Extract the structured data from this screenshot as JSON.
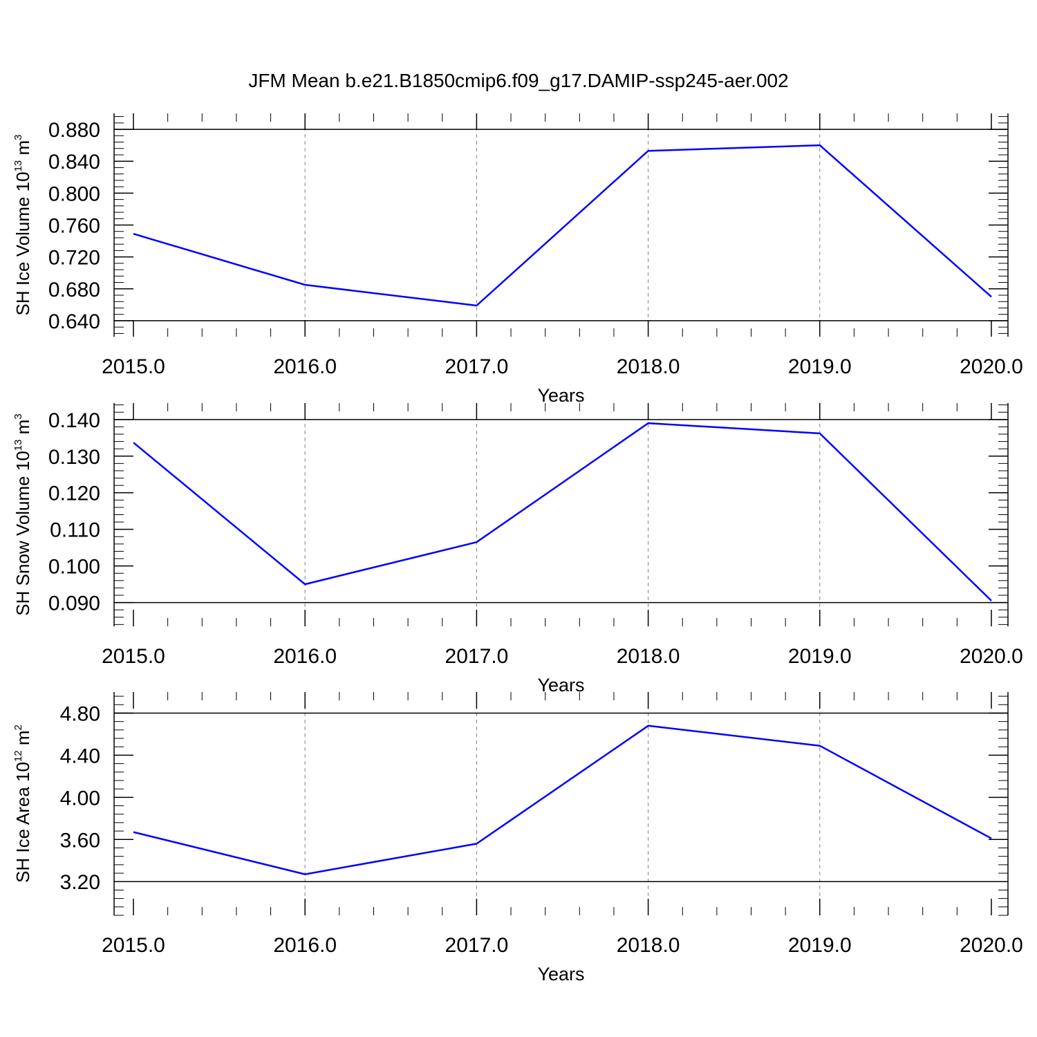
{
  "figure": {
    "title": "JFM Mean b.e21.B1850cmip6.f09_g17.DAMIP-ssp245-aer.002"
  },
  "colors": {
    "line": "#0000ff",
    "axis": "#000000",
    "grid": "#808080",
    "background": "#ffffff"
  },
  "chart_data": [
    {
      "type": "line",
      "xlabel": "Years",
      "ylabel": {
        "text": "SH Ice Volume 10",
        "exp1": "13",
        "unit": " m",
        "exp2": "3"
      },
      "xlim": [
        2015,
        2020
      ],
      "ylim": [
        0.62,
        0.9
      ],
      "xticks": [
        2015,
        2016,
        2017,
        2018,
        2019,
        2020
      ],
      "xtick_labels": [
        "2015.0",
        "2016.0",
        "2017.0",
        "2018.0",
        "2019.0",
        "2020.0"
      ],
      "yticks": [
        0.64,
        0.68,
        0.72,
        0.76,
        0.8,
        0.84,
        0.88
      ],
      "ytick_labels": [
        "0.640",
        "0.680",
        "0.720",
        "0.760",
        "0.800",
        "0.840",
        "0.880"
      ],
      "y_minor_step": 0.008,
      "x_minor_step": 0.2,
      "grid": "vertical-dashed",
      "series": [
        {
          "x": [
            2015,
            2016,
            2017,
            2018,
            2019,
            2020
          ],
          "values": [
            0.749,
            0.685,
            0.659,
            0.853,
            0.86,
            0.67
          ]
        }
      ]
    },
    {
      "type": "line",
      "xlabel": "Years",
      "ylabel": {
        "text": "SH Snow Volume 10",
        "exp1": "13",
        "unit": " m",
        "exp2": "3"
      },
      "xlim": [
        2015,
        2020
      ],
      "ylim": [
        0.0835,
        0.1445
      ],
      "xticks": [
        2015,
        2016,
        2017,
        2018,
        2019,
        2020
      ],
      "xtick_labels": [
        "2015.0",
        "2016.0",
        "2017.0",
        "2018.0",
        "2019.0",
        "2020.0"
      ],
      "yticks": [
        0.09,
        0.1,
        0.11,
        0.12,
        0.13,
        0.14
      ],
      "ytick_labels": [
        "0.090",
        "0.100",
        "0.110",
        "0.120",
        "0.130",
        "0.140"
      ],
      "y_minor_step": 0.002,
      "x_minor_step": 0.2,
      "grid": "vertical-dashed",
      "series": [
        {
          "x": [
            2015,
            2016,
            2017,
            2018,
            2019,
            2020
          ],
          "values": [
            0.1337,
            0.095,
            0.1065,
            0.139,
            0.1362,
            0.0905
          ]
        }
      ]
    },
    {
      "type": "line",
      "xlabel": "Years",
      "ylabel": {
        "text": "SH Ice Area 10",
        "exp1": "12",
        "unit": " m",
        "exp2": "2"
      },
      "xlim": [
        2015,
        2020
      ],
      "ylim": [
        2.88,
        5.0
      ],
      "xticks": [
        2015,
        2016,
        2017,
        2018,
        2019,
        2020
      ],
      "xtick_labels": [
        "2015.0",
        "2016.0",
        "2017.0",
        "2018.0",
        "2019.0",
        "2020.0"
      ],
      "yticks": [
        3.2,
        3.6,
        4.0,
        4.4,
        4.8
      ],
      "ytick_labels": [
        "3.20",
        "3.60",
        "4.00",
        "4.40",
        "4.80"
      ],
      "y_minor_step": 0.08,
      "x_minor_step": 0.2,
      "grid": "vertical-dashed",
      "series": [
        {
          "x": [
            2015,
            2016,
            2017,
            2018,
            2019,
            2020
          ],
          "values": [
            3.67,
            3.27,
            3.56,
            4.68,
            4.49,
            3.61
          ]
        }
      ]
    }
  ]
}
